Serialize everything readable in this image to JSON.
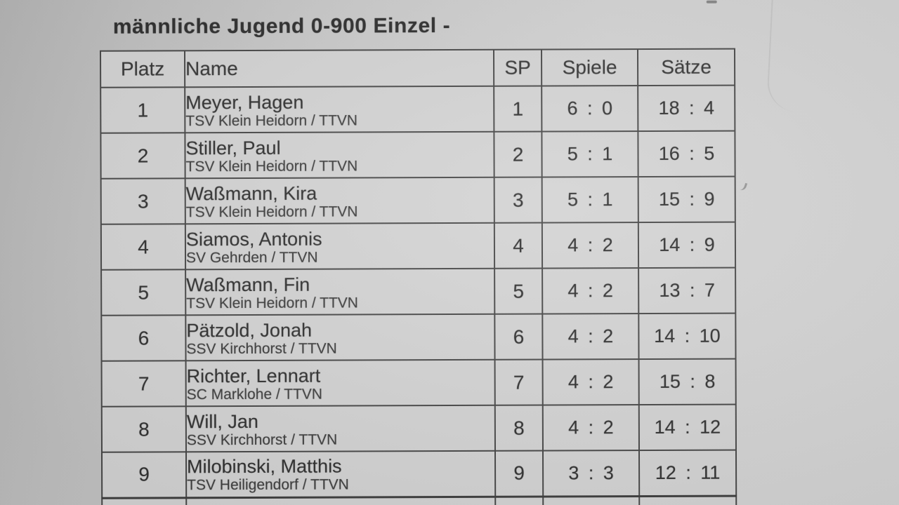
{
  "page": {
    "title": "männliche Jugend 0-900 Einzel -"
  },
  "table": {
    "headers": {
      "platz": "Platz",
      "name": "Name",
      "sp": "SP",
      "spiele": "Spiele",
      "saetze": "Sätze"
    },
    "rows": [
      {
        "platz": "1",
        "name": "Meyer, Hagen",
        "club": "TSV Klein Heidorn / TTVN",
        "sp": "1",
        "spiele": "6 : 0",
        "saetze": "18 : 4"
      },
      {
        "platz": "2",
        "name": "Stiller, Paul",
        "club": "TSV Klein Heidorn / TTVN",
        "sp": "2",
        "spiele": "5 : 1",
        "saetze": "16 : 5"
      },
      {
        "platz": "3",
        "name": "Waßmann, Kira",
        "club": "TSV Klein Heidorn / TTVN",
        "sp": "3",
        "spiele": "5 : 1",
        "saetze": "15 : 9"
      },
      {
        "platz": "4",
        "name": "Siamos, Antonis",
        "club": "SV Gehrden / TTVN",
        "sp": "4",
        "spiele": "4 : 2",
        "saetze": "14 : 9"
      },
      {
        "platz": "5",
        "name": "Waßmann, Fin",
        "club": "TSV Klein Heidorn / TTVN",
        "sp": "5",
        "spiele": "4 : 2",
        "saetze": "13 : 7"
      },
      {
        "platz": "6",
        "name": "Pätzold, Jonah",
        "club": "SSV Kirchhorst / TTVN",
        "sp": "6",
        "spiele": "4 : 2",
        "saetze": "14 : 10"
      },
      {
        "platz": "7",
        "name": "Richter, Lennart",
        "club": "SC Marklohe / TTVN",
        "sp": "7",
        "spiele": "4 : 2",
        "saetze": "15 : 8"
      },
      {
        "platz": "8",
        "name": "Will, Jan",
        "club": "SSV Kirchhorst / TTVN",
        "sp": "8",
        "spiele": "4 : 2",
        "saetze": "14 : 12"
      },
      {
        "platz": "9",
        "name": "Milobinski, Matthis",
        "club": "TSV Heiligendorf / TTVN",
        "sp": "9",
        "spiele": "3 : 3",
        "saetze": "12 : 11"
      }
    ],
    "partial_next_row_visible": true
  },
  "colors": {
    "paper_left": "#b6b6b6",
    "paper_right": "#d3d3d3",
    "cell_background": "#d6d6d6",
    "grid_line": "#454545",
    "ink": "#2b2b2b"
  }
}
